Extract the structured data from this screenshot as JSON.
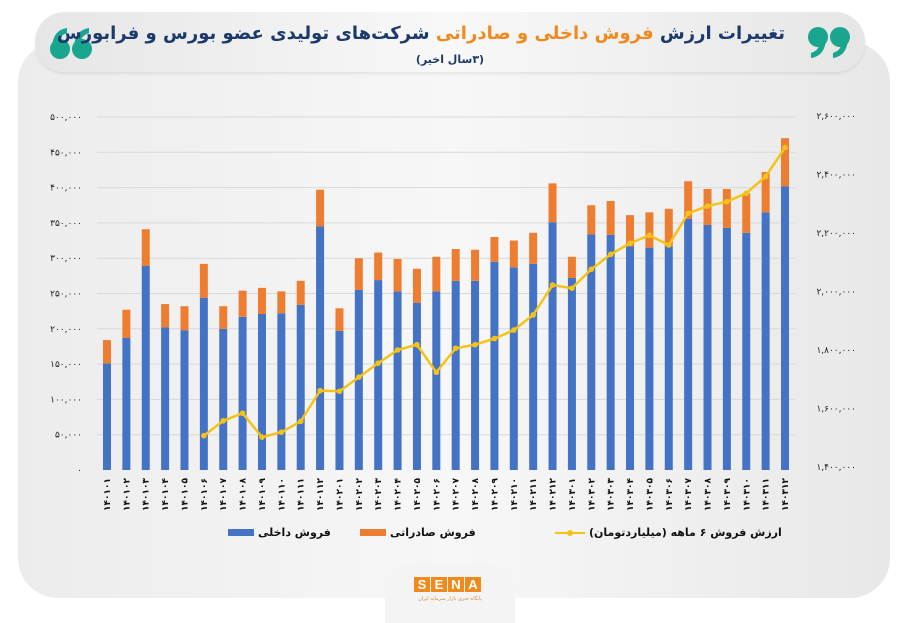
{
  "header": {
    "title_part1": "تغییرات ارزش ",
    "title_highlight": "فروش داخلی و صادراتی",
    "title_part2": " شرکت‌های تولیدی  عضو بورس و فرابورس",
    "subtitle": "(۳سال اخیر)",
    "quote_open": "❛❛",
    "quote_close": "❜❜"
  },
  "colors": {
    "domestic": "#4472c4",
    "export": "#ed7d31",
    "line": "#f5c318",
    "title": "#1b3a6b",
    "highlight": "#f08a1c",
    "quote": "#1aa58e"
  },
  "logo": {
    "text": "SENA",
    "letters": [
      "S",
      "E",
      "N",
      "A"
    ],
    "subtitle": "پایگاه خبری بازار سرمایه ایران"
  },
  "chart_data": {
    "type": "bar",
    "stacked": true,
    "categories": [
      "۱۴۰۱۰۱",
      "۱۴۰۱۰۲",
      "۱۴۰۱۰۳",
      "۱۴۰۱۰۴",
      "۱۴۰۱۰۵",
      "۱۴۰۱۰۶",
      "۱۴۰۱۰۷",
      "۱۴۰۱۰۸",
      "۱۴۰۱۰۹",
      "۱۴۰۱۱۰",
      "۱۴۰۱۱۱",
      "۱۴۰۱۱۲",
      "۱۴۰۲۰۱",
      "۱۴۰۲۰۲",
      "۱۴۰۲۰۳",
      "۱۴۰۲۰۴",
      "۱۴۰۲۰۵",
      "۱۴۰۲۰۶",
      "۱۴۰۲۰۷",
      "۱۴۰۲۰۸",
      "۱۴۰۲۰۹",
      "۱۴۰۲۱۰",
      "۱۴۰۲۱۱",
      "۱۴۰۲۱۲",
      "۱۴۰۳۰۱",
      "۱۴۰۳۰۲",
      "۱۴۰۳۰۳",
      "۱۴۰۳۰۴",
      "۱۴۰۳۰۵",
      "۱۴۰۳۰۶",
      "۱۴۰۳۰۷",
      "۱۴۰۳۰۸",
      "۱۴۰۳۰۹",
      "۱۴۰۳۱۰",
      "۱۴۰۳۱۱",
      "۱۴۰۳۱۲"
    ],
    "series": [
      {
        "name": "فروش داخلی",
        "axis": "left",
        "kind": "bar",
        "values": [
          151000,
          187000,
          289000,
          202000,
          198000,
          244000,
          200000,
          217000,
          221000,
          222000,
          234000,
          345000,
          197000,
          255000,
          269000,
          253000,
          237000,
          253000,
          268000,
          268000,
          295000,
          287000,
          292000,
          351000,
          272000,
          334000,
          333000,
          317000,
          315000,
          317000,
          356000,
          347000,
          343000,
          336000,
          365000,
          402000
        ]
      },
      {
        "name": "فروش صادراتی",
        "axis": "left",
        "kind": "bar",
        "values": [
          33000,
          40000,
          52000,
          33000,
          34000,
          48000,
          32000,
          37000,
          37000,
          31000,
          34000,
          52000,
          32000,
          45000,
          39000,
          46000,
          48000,
          49000,
          45000,
          44000,
          35000,
          38000,
          44000,
          55000,
          30000,
          41000,
          48000,
          44000,
          50000,
          53000,
          53000,
          51000,
          55000,
          56000,
          57000,
          68000
        ]
      },
      {
        "name": "ارزش فروش ۶ ماهه (میلیاردتومان)",
        "axis": "right",
        "kind": "line",
        "values": [
          null,
          null,
          null,
          null,
          null,
          1507000,
          1558000,
          1584000,
          1502000,
          1519000,
          1556000,
          1661000,
          1659000,
          1707000,
          1755000,
          1800000,
          1818000,
          1724000,
          1806000,
          1818000,
          1839000,
          1868000,
          1920000,
          2022000,
          2011000,
          2076000,
          2127000,
          2165000,
          2192000,
          2159000,
          2267000,
          2292000,
          2307000,
          2336000,
          2393000,
          2492000
        ]
      }
    ],
    "y_left": {
      "range": [
        0,
        500000
      ],
      "ticks": [
        0,
        50000,
        100000,
        150000,
        200000,
        250000,
        300000,
        350000,
        400000,
        450000,
        500000
      ],
      "tick_labels": [
        "۰",
        "۵۰,۰۰۰",
        "۱۰۰,۰۰۰",
        "۱۵۰,۰۰۰",
        "۲۰۰,۰۰۰",
        "۲۵۰,۰۰۰",
        "۳۰۰,۰۰۰",
        "۳۵۰,۰۰۰",
        "۴۰۰,۰۰۰",
        "۴۵۰,۰۰۰",
        "۵۰۰,۰۰۰"
      ]
    },
    "y_right": {
      "range": [
        1400000,
        2600000
      ],
      "ticks": [
        1400000,
        1600000,
        1800000,
        2000000,
        2200000,
        2400000,
        2600000
      ],
      "tick_labels": [
        "۱,۴۰۰,۰۰۰",
        "۱,۶۰۰,۰۰۰",
        "۱,۸۰۰,۰۰۰",
        "۲,۰۰۰,۰۰۰",
        "۲,۲۰۰,۰۰۰",
        "۲,۴۰۰,۰۰۰",
        "۲,۶۰۰,۰۰۰"
      ]
    },
    "grid": true,
    "legend_position": "bottom"
  }
}
